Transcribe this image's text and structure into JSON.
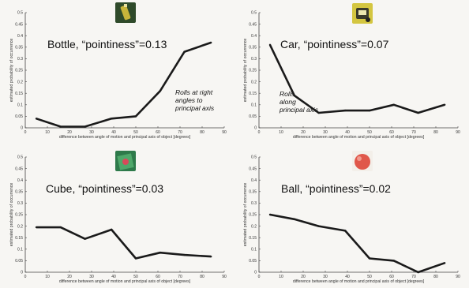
{
  "chart_data": [
    {
      "type": "line",
      "title": "Bottle, “pointiness”=0.13",
      "thumbnail_icon": "bottle-photo-icon",
      "thumbnail_colors": [
        "#2f4a2a",
        "#c8b43a"
      ],
      "xlabel": "difference between angle of motion and principal axis of object [degrees]",
      "ylabel": "estimated probability of occurrence",
      "xlim": [
        0,
        90
      ],
      "ylim": [
        0,
        0.5
      ],
      "xticks": [
        "0",
        "10",
        "20",
        "30",
        "40",
        "50",
        "60",
        "70",
        "80",
        "90"
      ],
      "yticks": [
        "0",
        "0.05",
        "0.1",
        "0.15",
        "0.2",
        "0.25",
        "0.3",
        "0.35",
        "0.4",
        "0.45",
        "0.5"
      ],
      "annotation": [
        "Rolls at right",
        "angles to",
        "principal axis"
      ],
      "series": [
        {
          "x": [
            5,
            16,
            27,
            39,
            50,
            61,
            72,
            84
          ],
          "y": [
            0.04,
            0.005,
            0.005,
            0.04,
            0.05,
            0.16,
            0.33,
            0.37
          ]
        }
      ]
    },
    {
      "type": "line",
      "title": "Car, “pointiness”=0.07",
      "thumbnail_icon": "car-photo-icon",
      "thumbnail_colors": [
        "#d4c640",
        "#3a3a2a"
      ],
      "xlabel": "difference between angle of motion and principal axis of object [degrees]",
      "ylabel": "estimated probability of occurrence",
      "xlim": [
        0,
        90
      ],
      "ylim": [
        0,
        0.5
      ],
      "xticks": [
        "0",
        "10",
        "20",
        "30",
        "40",
        "50",
        "60",
        "70",
        "80",
        "90"
      ],
      "yticks": [
        "0",
        "0.05",
        "0.1",
        "0.15",
        "0.2",
        "0.25",
        "0.3",
        "0.35",
        "0.4",
        "0.45",
        "0.5"
      ],
      "annotation": [
        "Rolls",
        "along",
        "principal axis"
      ],
      "series": [
        {
          "x": [
            5,
            16,
            27,
            39,
            50,
            61,
            72,
            84
          ],
          "y": [
            0.36,
            0.14,
            0.065,
            0.075,
            0.075,
            0.1,
            0.065,
            0.1
          ]
        }
      ]
    },
    {
      "type": "line",
      "title": "Cube, “pointiness”=0.03",
      "thumbnail_icon": "cube-photo-icon",
      "thumbnail_colors": [
        "#2e7a4a",
        "#d94a5a"
      ],
      "xlabel": "difference between angle of motion and principal axis of object [degrees]",
      "ylabel": "estimated probability of occurrence",
      "xlim": [
        0,
        90
      ],
      "ylim": [
        0,
        0.5
      ],
      "xticks": [
        "0",
        "10",
        "20",
        "30",
        "40",
        "50",
        "60",
        "70",
        "80",
        "90"
      ],
      "yticks": [
        "0",
        "0.05",
        "0.1",
        "0.15",
        "0.2",
        "0.25",
        "0.3",
        "0.35",
        "0.4",
        "0.45",
        "0.5"
      ],
      "annotation": [],
      "series": [
        {
          "x": [
            5,
            16,
            27,
            39,
            50,
            61,
            72,
            84
          ],
          "y": [
            0.195,
            0.195,
            0.145,
            0.185,
            0.06,
            0.085,
            0.075,
            0.068
          ]
        }
      ]
    },
    {
      "type": "line",
      "title": "Ball, “pointiness”=0.02",
      "thumbnail_icon": "ball-photo-icon",
      "thumbnail_colors": [
        "#e0574a",
        "#f7e9e4"
      ],
      "xlabel": "difference between angle of motion and principal axis of object [degrees]",
      "ylabel": "estimated probability of occurrence",
      "xlim": [
        0,
        90
      ],
      "ylim": [
        0,
        0.5
      ],
      "xticks": [
        "0",
        "10",
        "20",
        "30",
        "40",
        "50",
        "60",
        "70",
        "80",
        "90"
      ],
      "yticks": [
        "0",
        "0.05",
        "0.1",
        "0.15",
        "0.2",
        "0.25",
        "0.3",
        "0.35",
        "0.4",
        "0.45",
        "0.5"
      ],
      "annotation": [],
      "series": [
        {
          "x": [
            5,
            16,
            27,
            39,
            50,
            61,
            72,
            84
          ],
          "y": [
            0.25,
            0.23,
            0.2,
            0.18,
            0.06,
            0.05,
            0.0,
            0.04
          ]
        }
      ]
    }
  ]
}
